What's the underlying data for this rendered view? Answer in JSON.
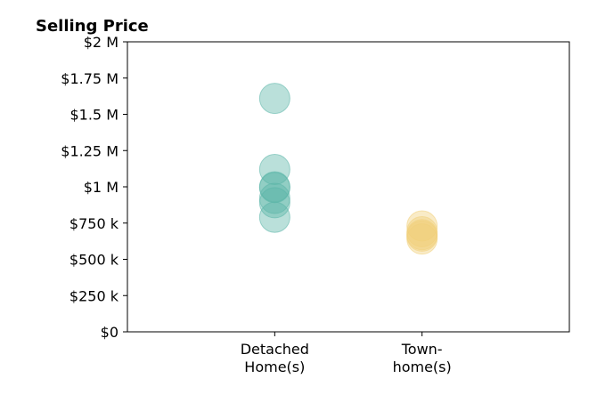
{
  "chart_data": {
    "type": "scatter",
    "title": "Selling Price",
    "xlabel": "",
    "ylabel": "",
    "categories": [
      [
        "Detached",
        "Home(s)"
      ],
      [
        "Town-",
        "home(s)"
      ]
    ],
    "y_ticks": [
      {
        "value": 0,
        "label": "$0"
      },
      {
        "value": 250000,
        "label": "$250 k"
      },
      {
        "value": 500000,
        "label": "$500 k"
      },
      {
        "value": 750000,
        "label": "$750 k"
      },
      {
        "value": 1000000,
        "label": "$1 M"
      },
      {
        "value": 1250000,
        "label": "$1.25 M"
      },
      {
        "value": 1500000,
        "label": "$1.5 M"
      },
      {
        "value": 1750000,
        "label": "$1.75 M"
      },
      {
        "value": 2000000,
        "label": "$2 M"
      }
    ],
    "ylim": [
      0,
      2000000
    ],
    "xlim": [
      0,
      3
    ],
    "grid": false,
    "series": [
      {
        "category_index": 0,
        "color": "#5ab5a8",
        "values": [
          1610000,
          1120000,
          1000000,
          995000,
          920000,
          890000,
          790000
        ]
      },
      {
        "category_index": 1,
        "color": "#f0cf7a",
        "values": [
          730000,
          690000,
          670000,
          660000,
          640000
        ]
      }
    ]
  }
}
